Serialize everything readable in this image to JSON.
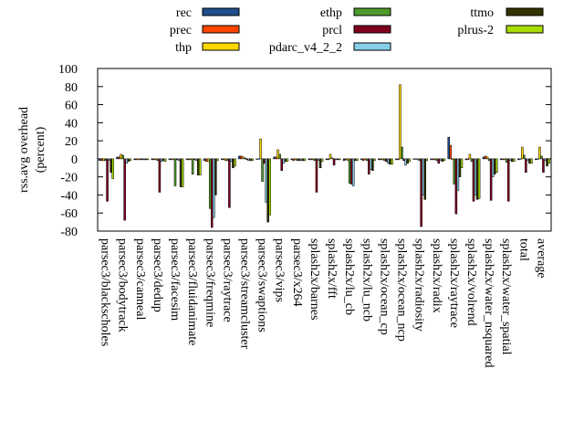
{
  "chart_data": {
    "type": "bar",
    "ylabel": [
      "rss.avg overhead",
      "(percent)"
    ],
    "categories": [
      "parsec3/blackscholes",
      "parsec3/bodytrack",
      "parsec3/canneal",
      "parsec3/dedup",
      "parsec3/facesim",
      "parsec3/fluidanimate",
      "parsec3/freqmine",
      "parsec3/raytrace",
      "parsec3/streamcluster",
      "parsec3/swaptions",
      "parsec3/vips",
      "parsec3/x264",
      "splash2x/barnes",
      "splash2x/fft",
      "splash2x/lu_cb",
      "splash2x/lu_ncb",
      "splash2x/ocean_cp",
      "splash2x/ocean_ncp",
      "splash2x/radiosity",
      "splash2x/radix",
      "splash2x/raytrace",
      "splash2x/volrend",
      "splash2x/water_nsquared",
      "splash2x/water_spatial",
      "total",
      "average"
    ],
    "series": [
      {
        "name": "rec",
        "color": "#1f4e8c",
        "values": [
          -2,
          2,
          -1,
          -1,
          -1,
          -1,
          -2,
          -1,
          3,
          0,
          2,
          -1,
          -1,
          -1,
          -2,
          -1,
          -1,
          -1,
          0,
          -1,
          24,
          -1,
          2,
          -1,
          -1,
          -1
        ]
      },
      {
        "name": "prec",
        "color": "#ff4500",
        "values": [
          -2,
          2,
          -1,
          -1,
          -1,
          -1,
          -3,
          -1,
          3,
          0,
          2,
          -2,
          -1,
          -1,
          -1,
          -2,
          -1,
          -1,
          0,
          -1,
          15,
          -1,
          3,
          -1,
          0,
          0
        ]
      },
      {
        "name": "thp",
        "color": "#ffd700",
        "values": [
          -2,
          5,
          -1,
          -1,
          -1,
          -1,
          -3,
          -2,
          2,
          22,
          10,
          -1,
          -1,
          5,
          -2,
          -1,
          -1,
          82,
          0,
          -1,
          -1,
          5,
          2,
          -1,
          13,
          13
        ]
      },
      {
        "name": "ethp",
        "color": "#4e9a2a",
        "values": [
          -2,
          4,
          -1,
          -2,
          -30,
          -17,
          -55,
          -2,
          1,
          -25,
          5,
          -2,
          -2,
          1,
          -27,
          -2,
          -2,
          13,
          -2,
          -2,
          -28,
          -3,
          -2,
          -4,
          4,
          3
        ]
      },
      {
        "name": "prcl",
        "color": "#800020",
        "values": [
          -47,
          -68,
          -1,
          -37,
          -1,
          -1,
          -76,
          -54,
          -1,
          -5,
          -13,
          -2,
          -37,
          -7,
          -28,
          -17,
          -3,
          -2,
          -75,
          -5,
          -61,
          -47,
          -46,
          -47,
          -15,
          -15
        ]
      },
      {
        "name": "pdarc_v4_2_2",
        "color": "#87ceeb",
        "values": [
          -2,
          -5,
          -1,
          -3,
          -2,
          -2,
          -65,
          -3,
          -2,
          -48,
          -5,
          -2,
          -2,
          -1,
          -30,
          -12,
          -5,
          -7,
          -40,
          -2,
          -35,
          -40,
          -20,
          -2,
          -2,
          -2
        ]
      },
      {
        "name": "ttmo",
        "color": "#333300",
        "values": [
          -15,
          -3,
          -1,
          -2,
          -31,
          -18,
          -40,
          -10,
          -2,
          -70,
          -3,
          -2,
          -10,
          -1,
          -2,
          -13,
          -6,
          -5,
          -45,
          -3,
          -20,
          -45,
          -17,
          -3,
          -5,
          -8
        ]
      },
      {
        "name": "plrus-2",
        "color": "#aadd00",
        "values": [
          -22,
          -2,
          -1,
          -3,
          -31,
          -18,
          -2,
          -8,
          -2,
          -62,
          -3,
          -2,
          -3,
          -1,
          -2,
          -2,
          -6,
          -3,
          -2,
          -2,
          -10,
          -44,
          -15,
          -3,
          -5,
          -5
        ]
      }
    ],
    "ylim": [
      -80,
      100
    ],
    "yticks": [
      -80,
      -60,
      -40,
      -20,
      0,
      20,
      40,
      60,
      80,
      100
    ]
  }
}
